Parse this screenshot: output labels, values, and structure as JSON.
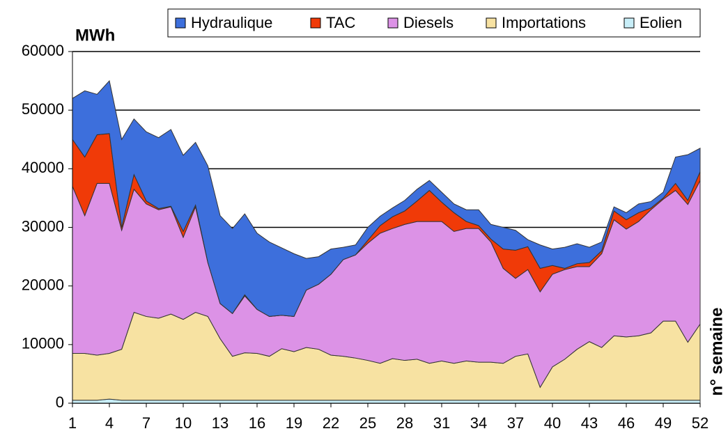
{
  "chart_data": {
    "type": "stacked_area",
    "y_label": "MWh",
    "x_label": "n° semaine",
    "categories": [
      1,
      null,
      null,
      4,
      null,
      null,
      7,
      null,
      null,
      10,
      null,
      null,
      13,
      null,
      null,
      16,
      null,
      null,
      19,
      null,
      null,
      22,
      null,
      null,
      25,
      null,
      null,
      28,
      null,
      null,
      31,
      null,
      null,
      34,
      null,
      null,
      37,
      null,
      null,
      40,
      null,
      null,
      43,
      null,
      null,
      46,
      null,
      null,
      49,
      null,
      null,
      52
    ],
    "ylim": [
      0,
      60000
    ],
    "yticks": [
      0,
      10000,
      20000,
      30000,
      40000,
      50000,
      60000
    ],
    "grid": true,
    "legend": "top",
    "series": [
      {
        "name": "Hydraulique",
        "color": "#3d6fdc",
        "values": [
          7000,
          11300,
          6900,
          9000,
          15000,
          9500,
          11800,
          12100,
          13100,
          13000,
          10700,
          16500,
          15000,
          14500,
          13800,
          13000,
          12700,
          11500,
          10700,
          5400,
          4700,
          4300,
          2100,
          1700,
          2200,
          1600,
          1500,
          1800,
          2000,
          1700,
          1700,
          1500,
          2000,
          2700,
          2500,
          3700,
          3400,
          1200,
          4000,
          2800,
          3600,
          3400,
          2600,
          1500,
          700,
          1200,
          1500,
          1100,
          1000,
          4500,
          7800,
          4000
        ]
      },
      {
        "name": "TAC",
        "color": "#f03a08",
        "values": [
          8000,
          10000,
          8300,
          8500,
          500,
          2500,
          500,
          200,
          100,
          1000,
          300,
          0,
          0,
          0,
          200,
          0,
          0,
          0,
          0,
          0,
          0,
          0,
          0,
          0,
          500,
          1300,
          2000,
          2300,
          3500,
          5300,
          3300,
          3200,
          1200,
          500,
          500,
          3300,
          4800,
          3900,
          4000,
          1500,
          200,
          500,
          700,
          500,
          1500,
          1600,
          1500,
          300,
          200,
          1200,
          700,
          1500
        ]
      },
      {
        "name": "Diesels",
        "color": "#dc92e6",
        "values": [
          28500,
          23500,
          29300,
          29000,
          20300,
          21000,
          19200,
          18500,
          18300,
          14000,
          18000,
          9200,
          6000,
          7300,
          9700,
          7500,
          6800,
          5700,
          6000,
          9800,
          11100,
          13800,
          16500,
          17600,
          20000,
          22200,
          22200,
          23200,
          23500,
          24200,
          23800,
          22500,
          22600,
          22800,
          20500,
          16200,
          13300,
          14400,
          16300,
          15800,
          15300,
          14100,
          12800,
          16000,
          19800,
          18400,
          19500,
          21000,
          20800,
          22300,
          23500,
          24500
        ]
      },
      {
        "name": "Importations",
        "color": "#f7e2a2",
        "values": [
          8000,
          8000,
          7700,
          7800,
          8700,
          15000,
          14300,
          14000,
          14700,
          13800,
          15000,
          14300,
          10500,
          7500,
          8100,
          8000,
          7500,
          8800,
          8300,
          9000,
          8700,
          7700,
          7500,
          7200,
          6800,
          6300,
          7100,
          6800,
          7000,
          6300,
          6700,
          6300,
          6700,
          6500,
          6500,
          6300,
          7500,
          7900,
          2200,
          5700,
          7000,
          8700,
          10000,
          9000,
          11000,
          10800,
          11000,
          11500,
          13500,
          13500,
          9900,
          13000
        ]
      },
      {
        "name": "Eolien",
        "color": "#c8eef8",
        "values": [
          500,
          500,
          500,
          700,
          500,
          500,
          500,
          500,
          500,
          500,
          500,
          500,
          500,
          500,
          500,
          500,
          500,
          500,
          500,
          500,
          500,
          500,
          500,
          500,
          500,
          500,
          500,
          500,
          500,
          500,
          500,
          500,
          500,
          500,
          500,
          500,
          500,
          500,
          500,
          500,
          500,
          500,
          500,
          500,
          500,
          500,
          500,
          500,
          500,
          500,
          500,
          500
        ]
      }
    ]
  }
}
